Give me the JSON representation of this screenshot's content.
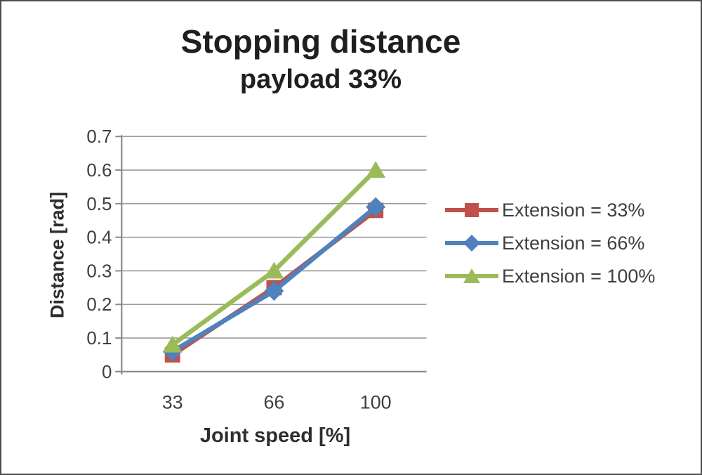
{
  "chart_data": {
    "type": "line",
    "title": "Stopping distance",
    "subtitle": "payload 33%",
    "xlabel": "Joint speed [%]",
    "ylabel": "Distance [rad]",
    "categories": [
      "33",
      "66",
      "100"
    ],
    "ylim": [
      0,
      0.7
    ],
    "ytick_step": 0.1,
    "ytick_labels": [
      "0",
      "0.1",
      "0.2",
      "0.3",
      "0.4",
      "0.5",
      "0.6",
      "0.7"
    ],
    "grid": true,
    "legend_position": "right",
    "series": [
      {
        "name": "Extension = 33%",
        "marker": "square",
        "color": "#C0504D",
        "values": [
          0.05,
          0.25,
          0.48
        ]
      },
      {
        "name": "Extension = 66%",
        "marker": "diamond",
        "color": "#4F81BD",
        "values": [
          0.06,
          0.24,
          0.49
        ]
      },
      {
        "name": "Extension = 100%",
        "marker": "triangle",
        "color": "#9BBB59",
        "values": [
          0.08,
          0.3,
          0.6
        ]
      }
    ]
  },
  "colors": {
    "gridline": "#9c9c9c",
    "axis": "#8a8a8a",
    "tick_text": "#3f3f3f",
    "title_text": "#1f1f1f",
    "frame_border": "#4d4d4d",
    "background": "#ffffff"
  }
}
